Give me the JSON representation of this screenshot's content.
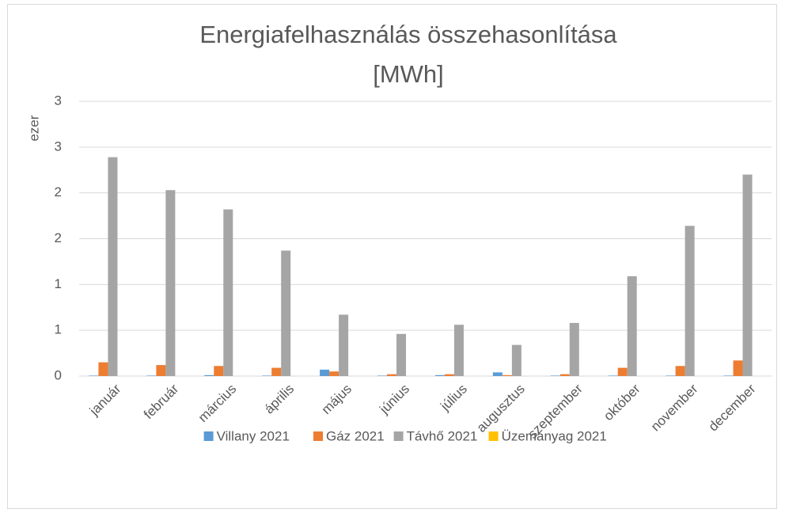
{
  "chart_data": {
    "type": "bar",
    "title": [
      "Energiafelhasználás összehasonlítása",
      "[MWh]"
    ],
    "ylabel": "ezer",
    "categories": [
      "január",
      "február",
      "március",
      "április",
      "május",
      "június",
      "július",
      "augusztus",
      "szeptember",
      "október",
      "november",
      "december"
    ],
    "series": [
      {
        "name": "Villany 2021",
        "color": "#5b9bd5",
        "values": [
          0.005,
          0.005,
          0.01,
          0.005,
          0.07,
          0.005,
          0.01,
          0.04,
          0.005,
          0.005,
          0.005,
          0.005
        ]
      },
      {
        "name": "Gáz 2021",
        "color": "#ed7d31",
        "values": [
          0.15,
          0.12,
          0.11,
          0.09,
          0.05,
          0.02,
          0.02,
          0.01,
          0.02,
          0.09,
          0.11,
          0.17
        ]
      },
      {
        "name": "Távhő 2021",
        "color": "#a5a5a5",
        "values": [
          2.39,
          2.03,
          1.82,
          1.37,
          0.67,
          0.46,
          0.56,
          0.34,
          0.58,
          1.09,
          1.64,
          2.2
        ]
      },
      {
        "name": "Üzemanyag 2021",
        "color": "#ffc000",
        "values": [
          0,
          0,
          0,
          0,
          0,
          0,
          0,
          0,
          0,
          0,
          0,
          0
        ]
      }
    ],
    "ylim": [
      0,
      3
    ],
    "yticks": [
      0,
      {
        "value": 0.5,
        "label": "1"
      },
      1,
      {
        "value": 1.5,
        "label": "2"
      },
      2,
      {
        "value": 2.5,
        "label": "3"
      },
      3
    ],
    "grid": true,
    "legend": "bottom"
  }
}
